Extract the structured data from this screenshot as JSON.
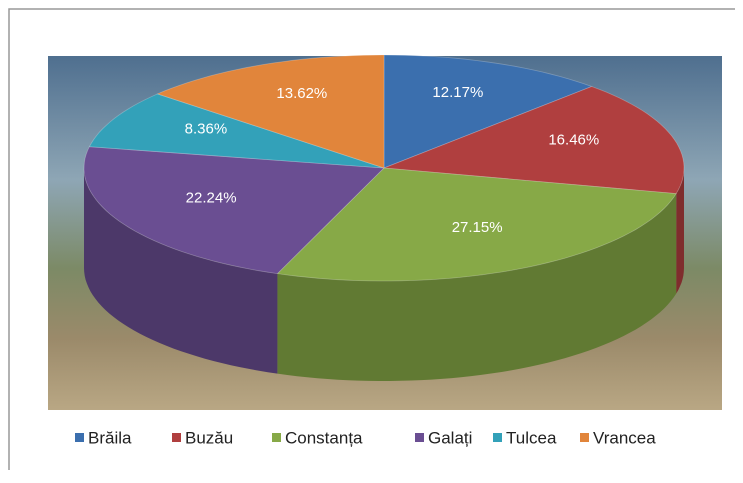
{
  "chart_data": {
    "type": "pie",
    "categories": [
      "Brăila",
      "Buzău",
      "Constanța",
      "Galați",
      "Tulcea",
      "Vrancea"
    ],
    "values": [
      12.17,
      16.46,
      27.15,
      22.24,
      8.36,
      13.62
    ],
    "value_labels": [
      "12.17%",
      "16.46%",
      "27.15%",
      "22.24%",
      "8.36%",
      "13.62%"
    ],
    "colors": [
      "#3b6fae",
      "#b03f3f",
      "#87a947",
      "#6a4e92",
      "#33a1b9",
      "#e1853b"
    ],
    "legend": "bottom"
  }
}
